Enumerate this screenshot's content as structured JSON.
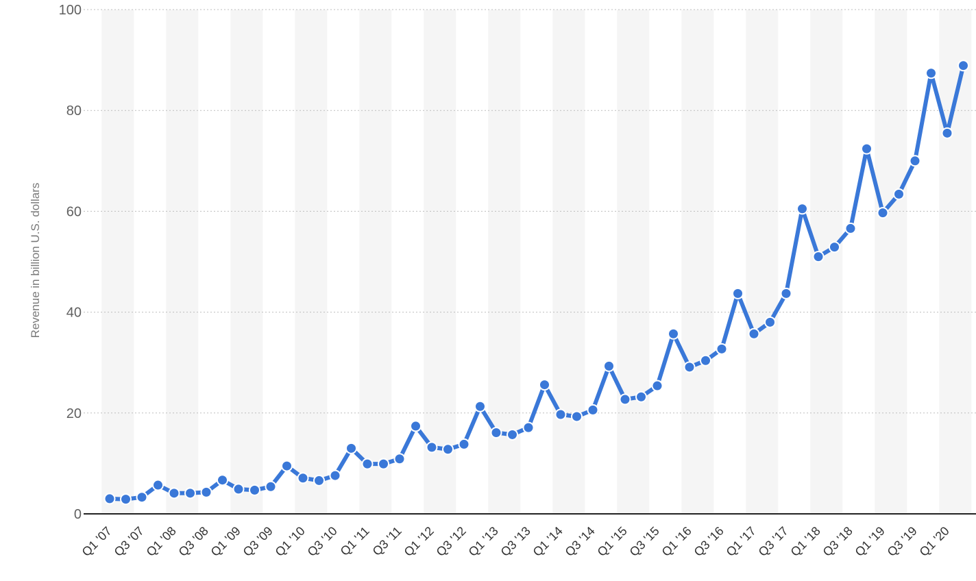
{
  "chart_data": {
    "type": "line",
    "title": "",
    "xlabel": "",
    "ylabel": "Revenue in billion U.S. dollars",
    "ylim": [
      0,
      100
    ],
    "yticks": [
      0,
      20,
      40,
      60,
      80,
      100
    ],
    "grid": true,
    "legend": "none",
    "color": "#3a78d8",
    "categories": [
      "Q1 '07",
      "Q2 '07",
      "Q3 '07",
      "Q4 '07",
      "Q1 '08",
      "Q2 '08",
      "Q3 '08",
      "Q4 '08",
      "Q1 '09",
      "Q2 '09",
      "Q3 '09",
      "Q4 '09",
      "Q1 '10",
      "Q2 '10",
      "Q3 '10",
      "Q4 '10",
      "Q1 '11",
      "Q2 '11",
      "Q3 '11",
      "Q4 '11",
      "Q1 '12",
      "Q2 '12",
      "Q3 '12",
      "Q4 '12",
      "Q1 '13",
      "Q2 '13",
      "Q3 '13",
      "Q4 '13",
      "Q1 '14",
      "Q2 '14",
      "Q3 '14",
      "Q4 '14",
      "Q1 '15",
      "Q2 '15",
      "Q3 '15",
      "Q4 '15",
      "Q1 '16",
      "Q2 '16",
      "Q3 '16",
      "Q4 '16",
      "Q1 '17",
      "Q2 '17",
      "Q3 '17",
      "Q4 '17",
      "Q1 '18",
      "Q2 '18",
      "Q3 '18",
      "Q4 '18",
      "Q1 '19",
      "Q2 '19",
      "Q3 '19",
      "Q4 '19",
      "Q1 '20",
      "Q2 '20"
    ],
    "tick_labels": [
      "Q1 '07",
      "Q3 '07",
      "Q1 '08",
      "Q3 '08",
      "Q1 '09",
      "Q3 '09",
      "Q1 '10",
      "Q3 '10",
      "Q1 '11",
      "Q3 '11",
      "Q1 '12",
      "Q3 '12",
      "Q1 '13",
      "Q3 '13",
      "Q1 '14",
      "Q3 '14",
      "Q1 '15",
      "Q3 '15",
      "Q1 '16",
      "Q3 '16",
      "Q1 '17",
      "Q3 '17",
      "Q1 '18",
      "Q3 '18",
      "Q1 '19",
      "Q3 '19",
      "Q1 '20"
    ],
    "values": [
      3.0,
      2.9,
      3.3,
      5.7,
      4.1,
      4.1,
      4.3,
      6.7,
      4.9,
      4.7,
      5.4,
      9.5,
      7.1,
      6.6,
      7.6,
      13.0,
      9.9,
      9.9,
      10.9,
      17.4,
      13.2,
      12.8,
      13.8,
      21.3,
      16.1,
      15.7,
      17.1,
      25.6,
      19.7,
      19.3,
      20.6,
      29.3,
      22.7,
      23.2,
      25.4,
      35.7,
      29.1,
      30.4,
      32.7,
      43.7,
      35.7,
      38.0,
      43.7,
      60.5,
      51.0,
      52.9,
      56.6,
      72.4,
      59.7,
      63.4,
      70.0,
      87.4,
      75.5,
      88.9
    ]
  }
}
